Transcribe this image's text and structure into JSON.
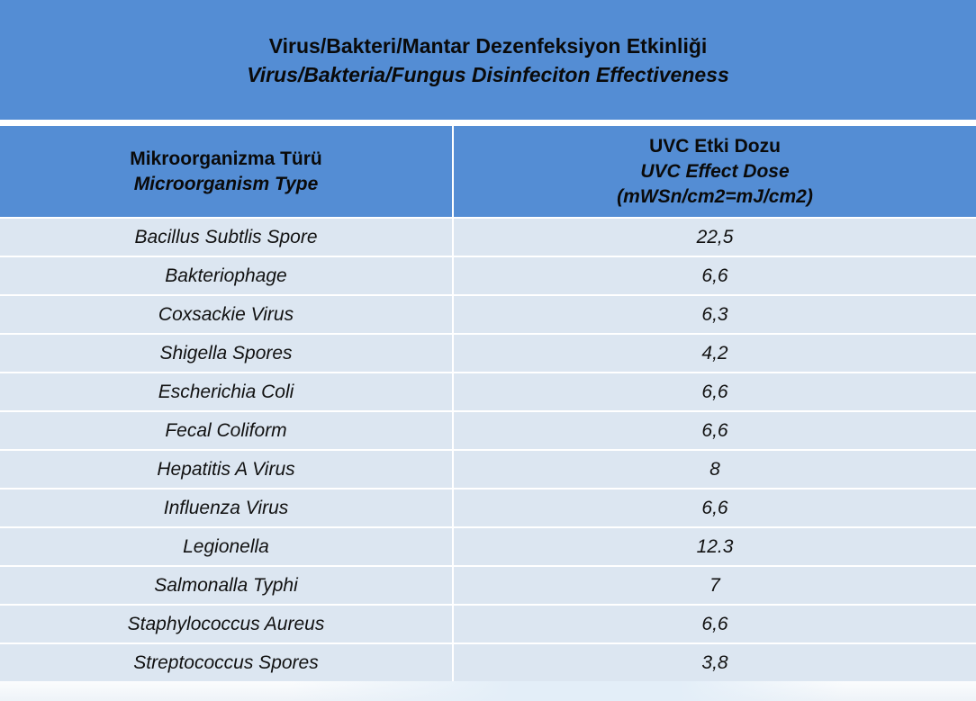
{
  "title": {
    "tr": "Virus/Bakteri/Mantar Dezenfeksiyon Etkinliği",
    "en": "Virus/Bakteria/Fungus Disinfeciton Effectiveness"
  },
  "headers": {
    "col1": {
      "tr": "Mikroorganizma Türü",
      "en": "Microorganism Type"
    },
    "col2": {
      "tr": "UVC Etki Dozu",
      "en": "UVC Effect Dose",
      "unit": "(mWSn/cm2=mJ/cm2)"
    }
  },
  "rows": [
    {
      "organism": "Bacillus Subtlis Spore",
      "dose": "22,5"
    },
    {
      "organism": "Bakteriophage",
      "dose": "6,6"
    },
    {
      "organism": "Coxsackie Virus",
      "dose": "6,3"
    },
    {
      "organism": "Shigella Spores",
      "dose": "4,2"
    },
    {
      "organism": "Escherichia Coli",
      "dose": "6,6"
    },
    {
      "organism": "Fecal Coliform",
      "dose": "6,6"
    },
    {
      "organism": "Hepatitis A Virus",
      "dose": "8"
    },
    {
      "organism": "Influenza Virus",
      "dose": "6,6"
    },
    {
      "organism": "Legionella",
      "dose": "12.3"
    },
    {
      "organism": "Salmonalla Typhi",
      "dose": "7"
    },
    {
      "organism": "Staphylococcus Aureus",
      "dose": "6,6"
    },
    {
      "organism": "Streptococcus Spores",
      "dose": "3,8"
    }
  ]
}
